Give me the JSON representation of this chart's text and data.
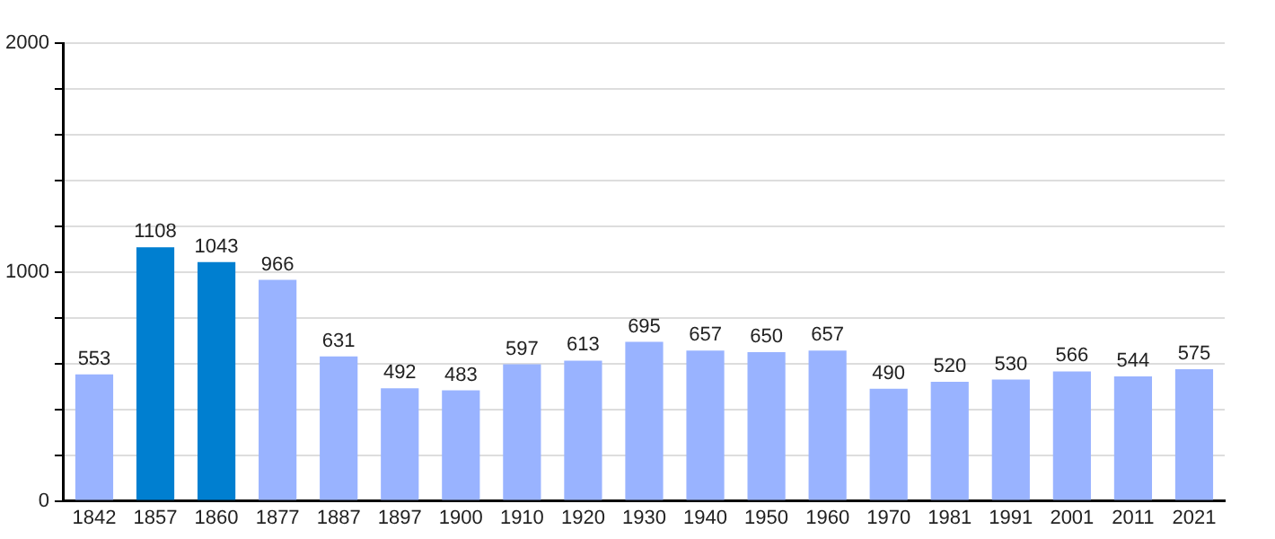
{
  "chart_data": {
    "type": "bar",
    "categories": [
      "1842",
      "1857",
      "1860",
      "1877",
      "1887",
      "1897",
      "1900",
      "1910",
      "1920",
      "1930",
      "1940",
      "1950",
      "1960",
      "1970",
      "1981",
      "1991",
      "2001",
      "2011",
      "2021"
    ],
    "values": [
      553,
      1108,
      1043,
      966,
      631,
      492,
      483,
      597,
      613,
      695,
      657,
      650,
      657,
      490,
      520,
      530,
      566,
      544,
      575
    ],
    "colors": [
      "#99b3ff",
      "#007fd0",
      "#007fd0",
      "#99b3ff",
      "#99b3ff",
      "#99b3ff",
      "#99b3ff",
      "#99b3ff",
      "#99b3ff",
      "#99b3ff",
      "#99b3ff",
      "#99b3ff",
      "#99b3ff",
      "#99b3ff",
      "#99b3ff",
      "#99b3ff",
      "#99b3ff",
      "#99b3ff",
      "#99b3ff"
    ],
    "ylim": [
      0,
      2000
    ],
    "yticks": [
      0,
      {
        "value": 200,
        "label": null
      },
      {
        "value": 400,
        "label": null
      },
      {
        "value": 600,
        "label": null
      },
      {
        "value": 800,
        "label": null
      },
      1000,
      {
        "value": 1200,
        "label": null
      },
      {
        "value": 1400,
        "label": null
      },
      {
        "value": 1600,
        "label": null
      },
      {
        "value": 1800,
        "label": null
      },
      2000
    ],
    "grid": "y",
    "data_labels": true,
    "legend": false
  }
}
